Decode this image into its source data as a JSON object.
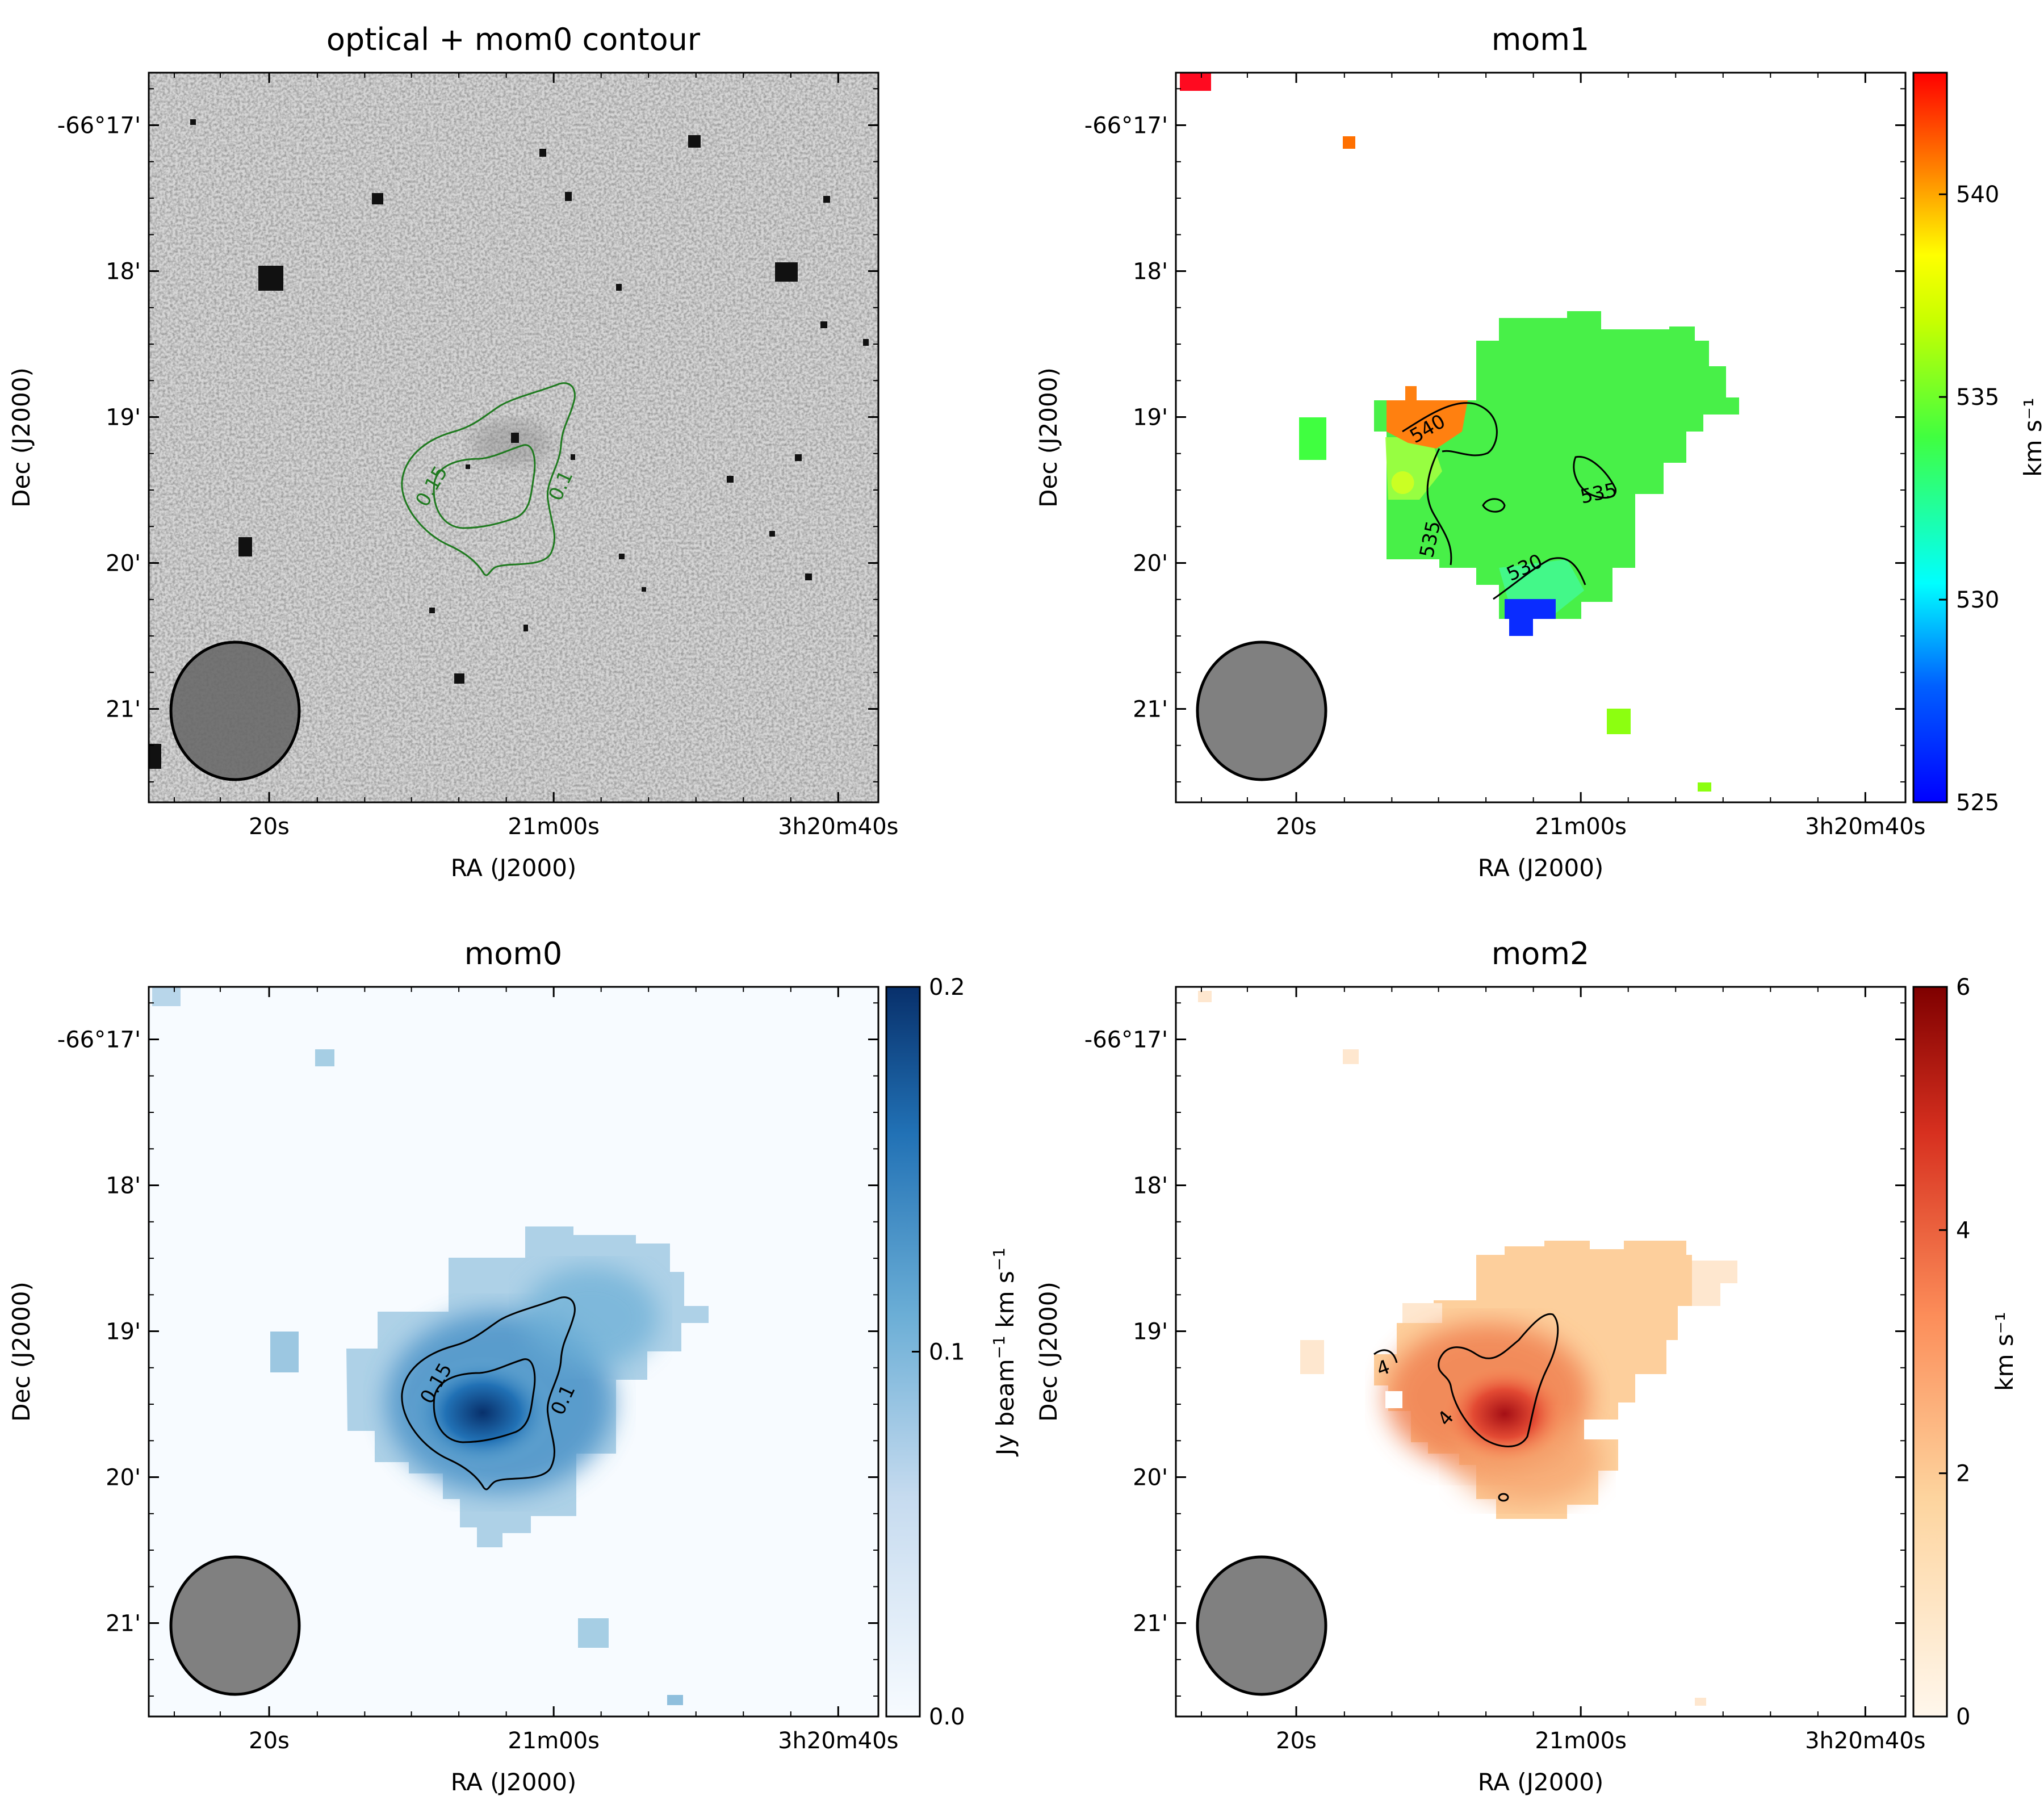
{
  "chart_data": [
    {
      "type": "heatmap",
      "title": "optical + mom0 contour",
      "xlabel": "RA (J2000)",
      "ylabel": "Dec (J2000)",
      "x_ticks": [
        "20s",
        "21m00s",
        "3h20m40s"
      ],
      "y_ticks": [
        "-66°17'",
        "18'",
        "19'",
        "20'",
        "21'"
      ],
      "image": "optical greyscale",
      "contour_levels": [
        0.1,
        0.15
      ],
      "contour_color": "#1f7a1f",
      "beam": "grey ellipse lower-left"
    },
    {
      "type": "heatmap",
      "title": "mom1",
      "xlabel": "RA (J2000)",
      "ylabel": "Dec (J2000)",
      "x_ticks": [
        "20s",
        "21m00s",
        "3h20m40s"
      ],
      "y_ticks": [
        "-66°17'",
        "18'",
        "19'",
        "20'",
        "21'"
      ],
      "colormap": "jet",
      "colorbar_label": "km s⁻¹",
      "colorbar_ticks": [
        "525",
        "530",
        "535",
        "540"
      ],
      "clim": [
        525,
        543
      ],
      "contour_levels": [
        530,
        535,
        540
      ],
      "beam": "grey ellipse lower-left"
    },
    {
      "type": "heatmap",
      "title": "mom0",
      "xlabel": "RA (J2000)",
      "ylabel": "Dec (J2000)",
      "x_ticks": [
        "20s",
        "21m00s",
        "3h20m40s"
      ],
      "y_ticks": [
        "-66°17'",
        "18'",
        "19'",
        "20'",
        "21'"
      ],
      "colormap": "Blues",
      "colorbar_label": "Jy beam⁻¹ km s⁻¹",
      "colorbar_ticks": [
        "0.0",
        "0.1",
        "0.2"
      ],
      "clim": [
        0.0,
        0.2
      ],
      "contour_levels": [
        0.1,
        0.15
      ],
      "beam": "grey ellipse lower-left"
    },
    {
      "type": "heatmap",
      "title": "mom2",
      "xlabel": "RA (J2000)",
      "ylabel": "Dec (J2000)",
      "x_ticks": [
        "20s",
        "21m00s",
        "3h20m40s"
      ],
      "y_ticks": [
        "-66°17'",
        "18'",
        "19'",
        "20'",
        "21'"
      ],
      "colormap": "OrRd",
      "colorbar_label": "km s⁻¹",
      "colorbar_ticks": [
        "0",
        "2",
        "4",
        "6"
      ],
      "clim": [
        0,
        6
      ],
      "contour_levels": [
        4
      ],
      "beam": "grey ellipse lower-left"
    }
  ]
}
